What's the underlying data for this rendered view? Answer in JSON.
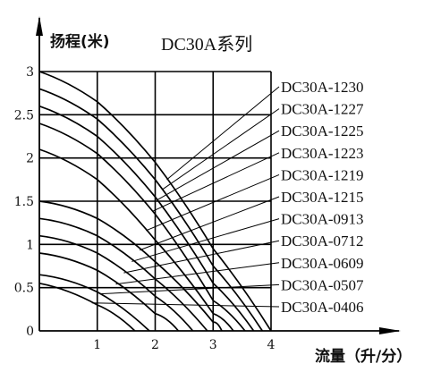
{
  "chart_data": {
    "type": "line",
    "title": "DC30A系列",
    "xlabel": "流量（升/分）",
    "ylabel": "扬程(米)",
    "xlim": [
      0,
      4
    ],
    "ylim": [
      0,
      3
    ],
    "x_ticks": [
      "1",
      "2",
      "3",
      "4"
    ],
    "y_ticks": [
      "0",
      "0.5",
      "1",
      "1.5",
      "2",
      "2.5",
      "3"
    ],
    "grid": true,
    "legend_position": "right",
    "series": [
      {
        "name": "DC30A-1230",
        "points": [
          [
            0,
            3.0
          ],
          [
            1,
            2.65
          ],
          [
            2,
            1.95
          ],
          [
            3,
            0.95
          ],
          [
            4,
            0.0
          ]
        ]
      },
      {
        "name": "DC30A-1227",
        "points": [
          [
            0,
            2.8
          ],
          [
            1,
            2.45
          ],
          [
            2,
            1.75
          ],
          [
            3,
            0.75
          ],
          [
            3.85,
            0.0
          ]
        ]
      },
      {
        "name": "DC30A-1225",
        "points": [
          [
            0,
            2.6
          ],
          [
            1,
            2.25
          ],
          [
            2,
            1.55
          ],
          [
            3,
            0.55
          ],
          [
            3.7,
            0.0
          ]
        ]
      },
      {
        "name": "DC30A-1223",
        "points": [
          [
            0,
            2.4
          ],
          [
            1,
            2.05
          ],
          [
            2,
            1.35
          ],
          [
            3,
            0.35
          ],
          [
            3.55,
            0.0
          ]
        ]
      },
      {
        "name": "DC30A-1219",
        "points": [
          [
            0,
            2.1
          ],
          [
            1,
            1.75
          ],
          [
            2,
            1.05
          ],
          [
            3,
            0.2
          ],
          [
            3.35,
            0.0
          ]
        ]
      },
      {
        "name": "DC30A-1215",
        "points": [
          [
            0,
            1.5
          ],
          [
            1,
            1.3
          ],
          [
            2,
            0.8
          ],
          [
            3,
            0.1
          ],
          [
            3.15,
            0.0
          ]
        ]
      },
      {
        "name": "DC30A-0913",
        "points": [
          [
            0,
            1.3
          ],
          [
            1,
            1.1
          ],
          [
            2,
            0.6
          ],
          [
            2.9,
            0.0
          ]
        ]
      },
      {
        "name": "DC30A-0712",
        "points": [
          [
            0,
            1.1
          ],
          [
            1,
            0.9
          ],
          [
            2,
            0.4
          ],
          [
            2.65,
            0.0
          ]
        ]
      },
      {
        "name": "DC30A-0609",
        "points": [
          [
            0,
            0.9
          ],
          [
            1,
            0.7
          ],
          [
            2,
            0.2
          ],
          [
            2.4,
            0.0
          ]
        ]
      },
      {
        "name": "DC30A-0507",
        "points": [
          [
            0,
            0.65
          ],
          [
            1,
            0.45
          ],
          [
            1.9,
            0.0
          ]
        ]
      },
      {
        "name": "DC30A-0406",
        "points": [
          [
            0,
            0.55
          ],
          [
            1,
            0.3
          ],
          [
            1.65,
            0.0
          ]
        ]
      }
    ]
  }
}
